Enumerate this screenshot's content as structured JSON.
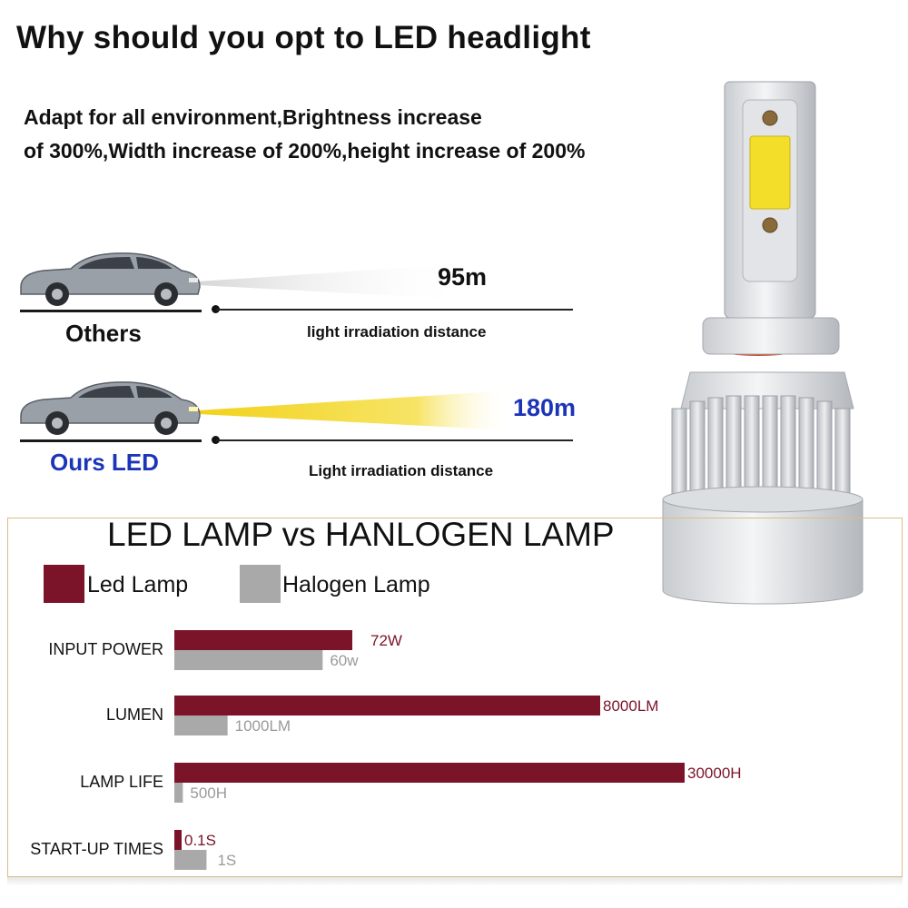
{
  "header": {
    "title": "Why should you opt to LED headlight",
    "subtitle_line1": "Adapt for all environment,Brightness increase",
    "subtitle_line2": "of 300%,Width increase of 200%,height increase of 200%"
  },
  "comparison": {
    "others": {
      "name": "Others",
      "distance": "95m",
      "caption": "light irradiation distance"
    },
    "ours": {
      "name": "Ours LED",
      "distance": "180m",
      "caption": "Light irradiation distance"
    }
  },
  "colors": {
    "led": "#7b1429",
    "halogen": "#a9a9a9",
    "led_text": "#7b1429",
    "halogen_text": "#9a9a9a",
    "accent_blue": "#1c34b8",
    "beam_yellow": "#f2d21c"
  },
  "chart_data": {
    "type": "bar",
    "orientation": "horizontal",
    "title": "LED LAMP vs HANLOGEN LAMP",
    "legend": {
      "position": "top-left",
      "entries": [
        "Led Lamp",
        "Halogen Lamp"
      ]
    },
    "categories": [
      "INPUT POWER",
      "LUMEN",
      "LAMP LIFE",
      "START-UP TIMES"
    ],
    "series": [
      {
        "name": "Led Lamp",
        "values": [
          72,
          8000,
          30000,
          0.1
        ],
        "labels": [
          "72W",
          "8000LM",
          "30000H",
          "0.1S"
        ]
      },
      {
        "name": "Halogen Lamp",
        "values": [
          60,
          1000,
          500,
          1
        ],
        "labels": [
          "60w",
          "1000LM",
          "500H",
          "1S"
        ]
      }
    ],
    "axis_note": "each category row uses its own unlabeled scale",
    "grid": false
  }
}
